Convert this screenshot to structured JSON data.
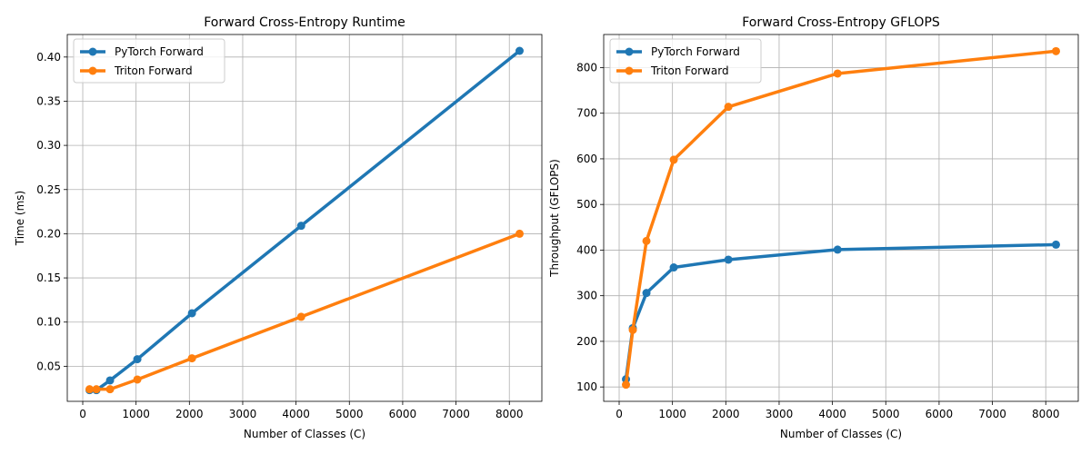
{
  "chart_data": [
    {
      "type": "line",
      "title": "Forward Cross-Entropy Runtime",
      "xlabel": "Number of Classes (C)",
      "ylabel": "Time (ms)",
      "x": [
        128,
        256,
        512,
        1024,
        2048,
        4096,
        8192
      ],
      "xlim": [
        -290,
        8610
      ],
      "ylim": [
        0.0103,
        0.4255
      ],
      "xticks": [
        0,
        1000,
        2000,
        3000,
        4000,
        5000,
        6000,
        7000,
        8000
      ],
      "yticks": [
        0.05,
        0.1,
        0.15,
        0.2,
        0.25,
        0.3,
        0.35,
        0.4
      ],
      "ytick_labels": [
        "0.05",
        "0.10",
        "0.15",
        "0.20",
        "0.25",
        "0.30",
        "0.35",
        "0.40"
      ],
      "grid": true,
      "legend": "upper-left",
      "series": [
        {
          "name": "PyTorch Forward",
          "color": "#1f77b4",
          "values": [
            0.023,
            0.023,
            0.034,
            0.058,
            0.11,
            0.209,
            0.407
          ]
        },
        {
          "name": "Triton Forward",
          "color": "#ff7f0e",
          "values": [
            0.024,
            0.024,
            0.024,
            0.035,
            0.059,
            0.106,
            0.2
          ]
        }
      ]
    },
    {
      "type": "line",
      "title": "Forward Cross-Entropy GFLOPS",
      "xlabel": "Number of Classes (C)",
      "ylabel": "Throughput (GFLOPS)",
      "x": [
        128,
        256,
        512,
        1024,
        2048,
        4096,
        8192
      ],
      "xlim": [
        -290,
        8610
      ],
      "ylim": [
        68.5,
        872.5
      ],
      "xticks": [
        0,
        1000,
        2000,
        3000,
        4000,
        5000,
        6000,
        7000,
        8000
      ],
      "yticks": [
        100,
        200,
        300,
        400,
        500,
        600,
        700,
        800
      ],
      "ytick_labels": [
        "100",
        "200",
        "300",
        "400",
        "500",
        "600",
        "700",
        "800"
      ],
      "grid": true,
      "legend": "upper-left",
      "series": [
        {
          "name": "PyTorch Forward",
          "color": "#1f77b4",
          "values": [
            117,
            229,
            306,
            362,
            379,
            401,
            412
          ]
        },
        {
          "name": "Triton Forward",
          "color": "#ff7f0e",
          "values": [
            105,
            225,
            420,
            598,
            714,
            787,
            836
          ]
        }
      ]
    }
  ]
}
